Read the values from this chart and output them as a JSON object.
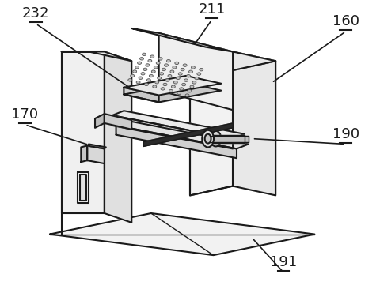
{
  "background_color": "#ffffff",
  "line_color": "#1a1a1a",
  "line_width": 1.5,
  "fig_width": 4.8,
  "fig_height": 3.9,
  "dpi": 100,
  "labels": [
    "232",
    "211",
    "160",
    "170",
    "190",
    "191"
  ],
  "label_fontsize": 13
}
